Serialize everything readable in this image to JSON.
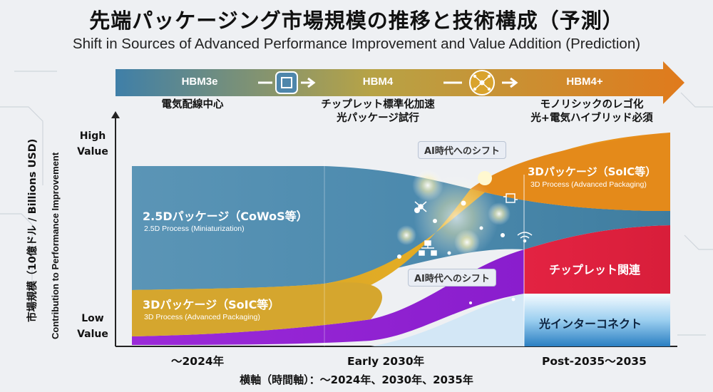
{
  "title": "先端パッケージング市場規模の推移と技術構成（予測）",
  "subtitle": "Shift in Sources of Advanced Performance Improvement and Value Addition (Prediction)",
  "timeline": {
    "stages": [
      {
        "label": "HBM3e",
        "desc": [
          "電気配線中心"
        ]
      },
      {
        "label": "HBM4",
        "desc": [
          "チップレット標準化加速",
          "光パッケージ試行"
        ]
      },
      {
        "label": "HBM4+",
        "desc": [
          "モノリシックのレゴ化",
          "光+電気ハイブリッド必須"
        ]
      }
    ],
    "icons": [
      "chip-icon",
      "network-icon"
    ]
  },
  "y_axis": {
    "label_ja": "市場規模（10億ドル / Billions USD)",
    "label_en": "Contribution to Performance Improvement",
    "high": [
      "High",
      "Value"
    ],
    "low": [
      "Low",
      "Value"
    ]
  },
  "x_axis": {
    "ticks": [
      "〜2024年",
      "Early 2030年",
      "Post-2035〜2035"
    ],
    "note": "横軸（時間軸）：〜2024年、2030年、2035年"
  },
  "segments": {
    "cowos": {
      "label": "2.5Dパッケージ（CoWoS等）",
      "sub": "2.5D Process (Miniaturization)",
      "color": "#4f8fb3"
    },
    "soic_left": {
      "label": "3Dパッケージ（SoIC等）",
      "sub": "3D Process (Advanced Packaging)",
      "color": "#d7a52a"
    },
    "soic_right": {
      "label": "3Dパッケージ（SoIC等）",
      "sub": "3D Process (Advanced Packaging)",
      "color": "#e08a1c"
    },
    "chiplet": {
      "label": "チップレット関連",
      "color": "#e0243c"
    },
    "optical": {
      "label": "光インターコネクト",
      "color": "#2a86c8"
    },
    "purple": {
      "color": "#8a1fd0"
    }
  },
  "tags": [
    "AI時代へのシフト",
    "AI時代へのシフト"
  ]
}
